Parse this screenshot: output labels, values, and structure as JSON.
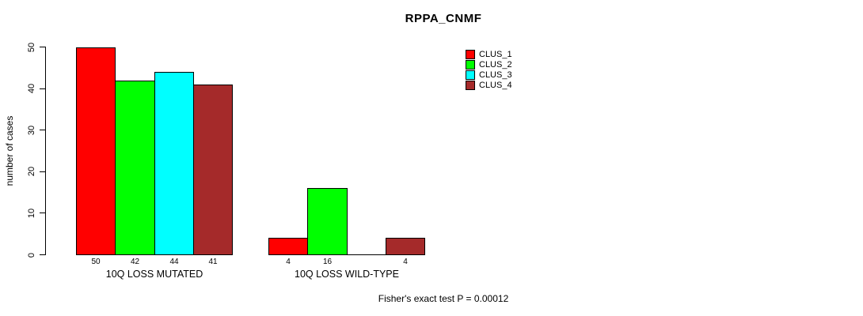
{
  "chart_data": {
    "type": "bar",
    "title": "RPPA_CNMF",
    "ylabel": "number of cases",
    "ylim": [
      0,
      50
    ],
    "yticks": [
      0,
      10,
      20,
      30,
      40,
      50
    ],
    "grid": false,
    "categories": [
      "10Q LOSS MUTATED",
      "10Q LOSS WILD-TYPE"
    ],
    "series": [
      {
        "name": "CLUS_1",
        "color": "#FF0000",
        "values": [
          50,
          4
        ]
      },
      {
        "name": "CLUS_2",
        "color": "#00FF00",
        "values": [
          42,
          16
        ]
      },
      {
        "name": "CLUS_3",
        "color": "#00FFFF",
        "values": [
          44,
          0
        ]
      },
      {
        "name": "CLUS_4",
        "color": "#A52A2A",
        "values": [
          41,
          4
        ]
      }
    ],
    "bar_value_labels": [
      [
        "50",
        "42",
        "44",
        "41"
      ],
      [
        "4",
        "16",
        "",
        "4"
      ]
    ],
    "legend": {
      "position": "top-right",
      "entries": [
        "CLUS_1",
        "CLUS_2",
        "CLUS_3",
        "CLUS_4"
      ]
    },
    "annotation": "Fisher's exact test P = 0.00012"
  }
}
